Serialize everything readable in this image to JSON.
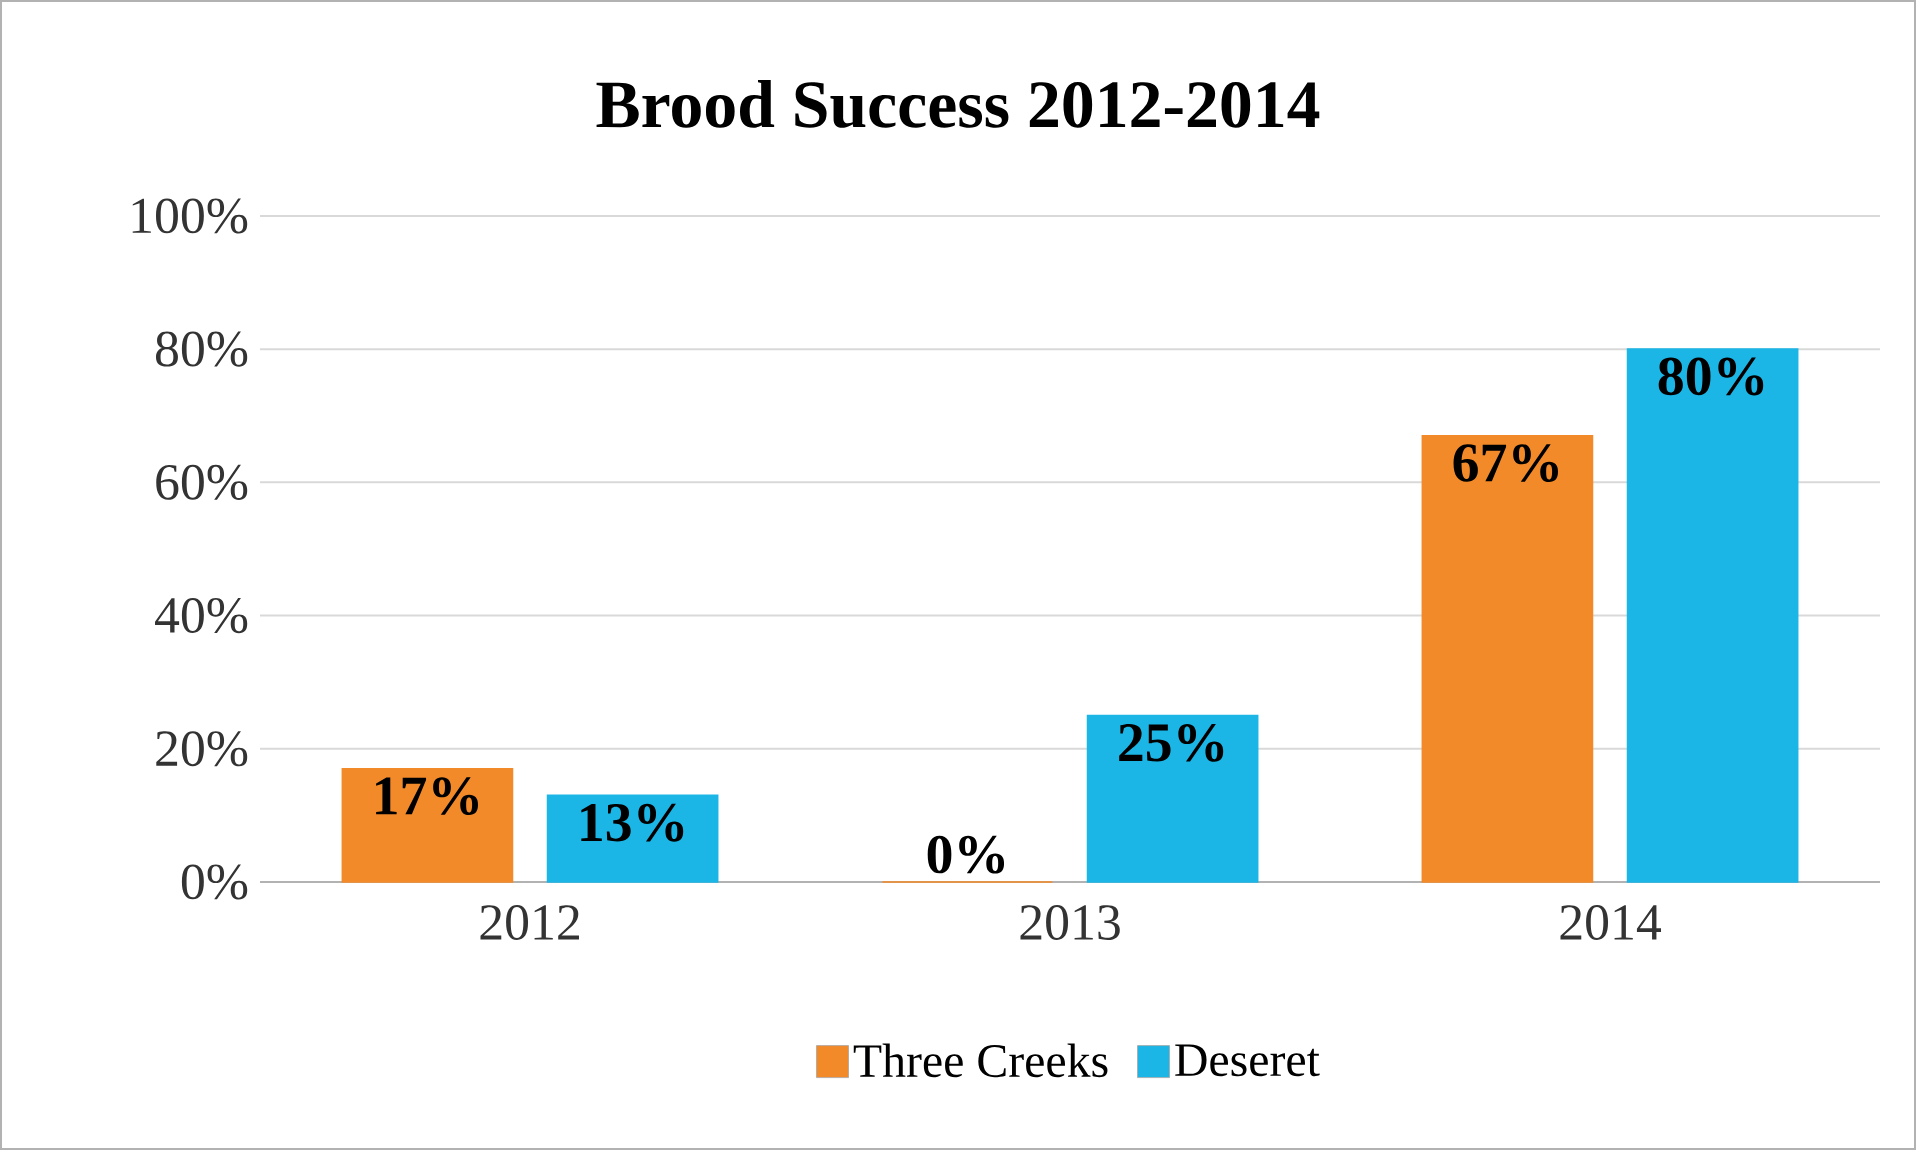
{
  "chart_data": {
    "type": "bar",
    "title": "Brood Success 2012-2014",
    "categories": [
      "2012",
      "2013",
      "2014"
    ],
    "series": [
      {
        "name": "Three Creeks",
        "color": "#f28a2a",
        "values": [
          17,
          0,
          67
        ],
        "value_labels": [
          "17%",
          "0%",
          "67%"
        ]
      },
      {
        "name": "Deseret",
        "color": "#1cb6e6",
        "values": [
          13,
          25,
          80
        ],
        "value_labels": [
          "13%",
          "25%",
          "80%"
        ]
      }
    ],
    "ylim": [
      0,
      100
    ],
    "yticks": [
      {
        "value": 0,
        "label": "0%"
      },
      {
        "value": 20,
        "label": "20%"
      },
      {
        "value": 40,
        "label": "40%"
      },
      {
        "value": 60,
        "label": "60%"
      },
      {
        "value": 80,
        "label": "80%"
      },
      {
        "value": 100,
        "label": "100%"
      }
    ],
    "grid": "y",
    "legend": "bottom"
  }
}
